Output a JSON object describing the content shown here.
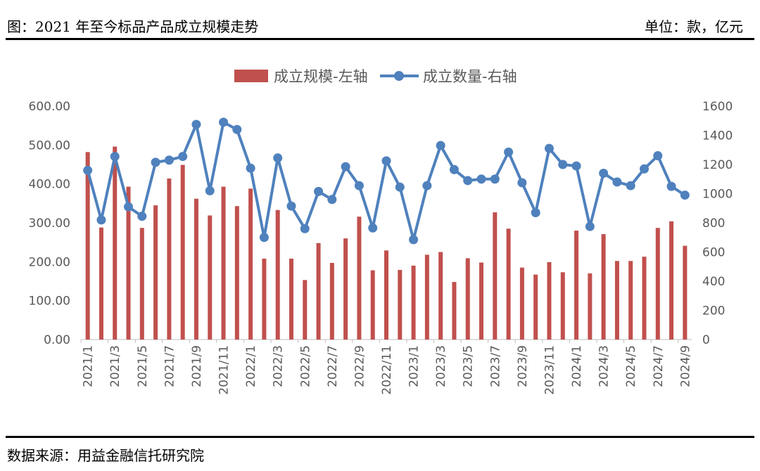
{
  "header": {
    "title": "图：2021 年至今标品产品成立规模走势",
    "unit": "单位：款，亿元"
  },
  "footer": {
    "source": "数据来源：用益金融信托研究院"
  },
  "colors": {
    "bar": "#c0504d",
    "line": "#4f81bd",
    "text": "#595959",
    "axis": "#bfbfbf"
  },
  "chart_data": {
    "type": "bar+line",
    "categories": [
      "2021/1",
      "2021/2",
      "2021/3",
      "2021/4",
      "2021/5",
      "2021/6",
      "2021/7",
      "2021/8",
      "2021/9",
      "2021/10",
      "2021/11",
      "2021/12",
      "2022/1",
      "2022/2",
      "2022/3",
      "2022/4",
      "2022/5",
      "2022/6",
      "2022/7",
      "2022/8",
      "2022/9",
      "2022/10",
      "2022/11",
      "2022/12",
      "2023/1",
      "2023/2",
      "2023/3",
      "2023/4",
      "2023/5",
      "2023/6",
      "2023/7",
      "2023/8",
      "2023/9",
      "2023/10",
      "2023/11",
      "2023/12",
      "2024/1",
      "2024/2",
      "2024/3",
      "2024/4",
      "2024/5",
      "2024/6",
      "2024/7",
      "2024/8",
      "2024/9"
    ],
    "x_tick_labels": [
      "2021/1",
      "2021/3",
      "2021/5",
      "2021/7",
      "2021/9",
      "2021/11",
      "2022/1",
      "2022/3",
      "2022/5",
      "2022/7",
      "2022/9",
      "2022/11",
      "2023/1",
      "2023/3",
      "2023/5",
      "2023/7",
      "2023/9",
      "2023/11",
      "2024/1",
      "2024/3",
      "2024/5",
      "2024/7",
      "2024/9"
    ],
    "legend": [
      "成立规模-左轴",
      "成立数量-右轴"
    ],
    "legend_position": "top-center",
    "y_left": {
      "min": 0,
      "max": 600,
      "ticks": [
        "0.00",
        "100.00",
        "200.00",
        "300.00",
        "400.00",
        "500.00",
        "600.00"
      ]
    },
    "y_right": {
      "min": 0,
      "max": 1600,
      "ticks": [
        "0",
        "200",
        "400",
        "600",
        "800",
        "1000",
        "1200",
        "1400",
        "1600"
      ]
    },
    "grid": false,
    "series": [
      {
        "name": "成立规模-左轴",
        "type": "bar",
        "axis": "left",
        "values": [
          482,
          288,
          496,
          393,
          287,
          345,
          414,
          449,
          362,
          319,
          393,
          343,
          388,
          208,
          333,
          208,
          153,
          248,
          197,
          260,
          316,
          178,
          229,
          179,
          190,
          218,
          225,
          148,
          209,
          198,
          327,
          285,
          185,
          167,
          199,
          173,
          280,
          170,
          271,
          202,
          202,
          213,
          287,
          304,
          241
        ]
      },
      {
        "name": "成立数量-右轴",
        "type": "line",
        "axis": "right",
        "values": [
          1160,
          820,
          1255,
          910,
          845,
          1215,
          1230,
          1255,
          1475,
          1020,
          1490,
          1440,
          1175,
          700,
          1245,
          915,
          760,
          1015,
          960,
          1185,
          1055,
          765,
          1225,
          1045,
          685,
          1055,
          1330,
          1165,
          1090,
          1100,
          1100,
          1285,
          1075,
          870,
          1310,
          1200,
          1190,
          775,
          1140,
          1080,
          1055,
          1170,
          1260,
          1050,
          990
        ]
      }
    ]
  }
}
